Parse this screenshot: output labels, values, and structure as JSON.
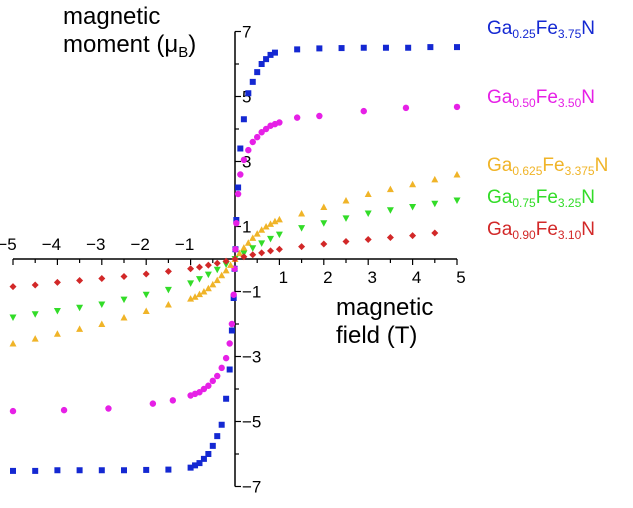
{
  "chart_data": {
    "type": "scatter",
    "ylabel": {
      "line1": "magnetic",
      "line2": "moment (",
      "symbol": "μ",
      "sub": "B",
      "close": ")"
    },
    "xlabel": {
      "line1": "magnetic",
      "line2": "field (T)"
    },
    "xlim": [
      -5,
      5
    ],
    "ylim": [
      -7,
      7
    ],
    "x_ticks": [
      "−5",
      "−4",
      "−3",
      "−2",
      "−1",
      "1",
      "2",
      "3",
      "4",
      "5"
    ],
    "y_ticks": [
      "7",
      "5",
      "3",
      "1",
      "−1",
      "−3",
      "−5",
      "−7"
    ],
    "grid": false,
    "legend_placement": "right",
    "series": [
      {
        "name": {
          "a": "Ga",
          "a_sub": "0.25",
          "b": "Fe",
          "b_sub": "3.75",
          "c": "N"
        },
        "color": "#1428d2",
        "marker": "square",
        "x": [
          -5,
          -4.5,
          -4,
          -3.5,
          -3,
          -2.5,
          -2,
          -1.5,
          -1,
          -0.9,
          -0.8,
          -0.7,
          -0.6,
          -0.5,
          -0.4,
          -0.3,
          -0.2,
          -0.12,
          -0.07,
          -0.03,
          -0.01,
          0.01,
          0.03,
          0.07,
          0.12,
          0.2,
          0.3,
          0.4,
          0.5,
          0.6,
          0.7,
          0.8,
          0.9,
          1.4,
          1.9,
          2.4,
          2.9,
          3.4,
          3.9,
          4.4,
          5
        ],
        "y": [
          -6.52,
          -6.52,
          -6.5,
          -6.5,
          -6.5,
          -6.5,
          -6.49,
          -6.48,
          -6.42,
          -6.35,
          -6.28,
          -6.15,
          -6.0,
          -5.75,
          -5.45,
          -5.1,
          -4.3,
          -3.4,
          -2.2,
          -1.2,
          -0.3,
          0.3,
          1.2,
          2.2,
          3.4,
          4.3,
          5.1,
          5.45,
          5.75,
          6.0,
          6.15,
          6.28,
          6.35,
          6.45,
          6.48,
          6.49,
          6.5,
          6.5,
          6.5,
          6.52,
          6.52
        ]
      },
      {
        "name": {
          "a": "Ga",
          "a_sub": "0.50",
          "b": "Fe",
          "b_sub": "3.50",
          "c": "N"
        },
        "color": "#e620e6",
        "marker": "circle",
        "x": [
          -5,
          -3.85,
          -2.85,
          -1.85,
          -1.4,
          -1,
          -0.9,
          -0.8,
          -0.7,
          -0.6,
          -0.5,
          -0.4,
          -0.3,
          -0.2,
          -0.12,
          -0.07,
          -0.03,
          -0.01,
          0.01,
          0.03,
          0.07,
          0.12,
          0.2,
          0.3,
          0.4,
          0.5,
          0.6,
          0.7,
          0.8,
          0.9,
          1,
          1.4,
          1.9,
          2.9,
          3.85,
          5
        ],
        "y": [
          -4.68,
          -4.65,
          -4.6,
          -4.45,
          -4.35,
          -4.2,
          -4.15,
          -4.1,
          -4.0,
          -3.9,
          -3.75,
          -3.6,
          -3.35,
          -3.05,
          -2.6,
          -2.0,
          -1.1,
          -0.3,
          0.3,
          1.1,
          2.0,
          2.6,
          3.05,
          3.35,
          3.6,
          3.75,
          3.9,
          4.0,
          4.1,
          4.15,
          4.2,
          4.35,
          4.4,
          4.55,
          4.65,
          4.68
        ]
      },
      {
        "name": {
          "a": "Ga",
          "a_sub": "0.625",
          "b": "Fe",
          "b_sub": "3.375",
          "c": "N"
        },
        "color": "#f0b428",
        "marker": "triangle-up",
        "x": [
          -5,
          -4.5,
          -4,
          -3.5,
          -3,
          -2.5,
          -2,
          -1.5,
          -1,
          -0.9,
          -0.8,
          -0.7,
          -0.6,
          -0.5,
          -0.4,
          -0.3,
          -0.2,
          -0.1,
          0,
          0.1,
          0.2,
          0.3,
          0.4,
          0.5,
          0.6,
          0.7,
          0.8,
          0.9,
          1,
          1.5,
          2,
          2.5,
          3,
          3.5,
          4,
          4.5,
          5
        ],
        "y": [
          -2.6,
          -2.45,
          -2.3,
          -2.15,
          -2.0,
          -1.8,
          -1.6,
          -1.4,
          -1.22,
          -1.16,
          -1.08,
          -1.0,
          -0.9,
          -0.78,
          -0.65,
          -0.5,
          -0.35,
          -0.18,
          0,
          0.18,
          0.35,
          0.5,
          0.65,
          0.78,
          0.9,
          1.0,
          1.08,
          1.16,
          1.22,
          1.4,
          1.6,
          1.8,
          2.0,
          2.15,
          2.3,
          2.45,
          2.6
        ]
      },
      {
        "name": {
          "a": "Ga",
          "a_sub": "0.75",
          "b": "Fe",
          "b_sub": "3.25",
          "c": "N"
        },
        "color": "#32dc28",
        "marker": "triangle-down",
        "x": [
          -5,
          -4.5,
          -4,
          -3.5,
          -3,
          -2.5,
          -2,
          -1.5,
          -1,
          -0.8,
          -0.6,
          -0.4,
          -0.2,
          0,
          0.2,
          0.4,
          0.6,
          0.8,
          1,
          1.5,
          2,
          2.5,
          3,
          3.5,
          4,
          4.5,
          5
        ],
        "y": [
          -1.8,
          -1.7,
          -1.6,
          -1.5,
          -1.4,
          -1.25,
          -1.1,
          -0.95,
          -0.75,
          -0.62,
          -0.48,
          -0.33,
          -0.17,
          0,
          0.17,
          0.33,
          0.48,
          0.62,
          0.75,
          0.95,
          1.1,
          1.25,
          1.4,
          1.5,
          1.6,
          1.7,
          1.8
        ]
      },
      {
        "name": {
          "a": "Ga",
          "a_sub": "0.90",
          "b": "Fe",
          "b_sub": "3.10",
          "c": "N"
        },
        "color": "#d22828",
        "marker": "diamond",
        "x": [
          -5,
          -4.5,
          -4,
          -3.5,
          -3,
          -2.5,
          -2,
          -1.5,
          -1,
          -0.8,
          -0.6,
          -0.4,
          -0.2,
          0,
          0.2,
          0.4,
          0.6,
          0.8,
          1,
          1.5,
          2,
          2.5,
          3,
          3.5,
          4,
          4.5
        ],
        "y": [
          -0.85,
          -0.8,
          -0.72,
          -0.66,
          -0.6,
          -0.54,
          -0.46,
          -0.38,
          -0.3,
          -0.25,
          -0.19,
          -0.13,
          -0.07,
          0,
          0.07,
          0.13,
          0.19,
          0.25,
          0.3,
          0.38,
          0.46,
          0.54,
          0.6,
          0.66,
          0.72,
          0.8
        ]
      }
    ]
  }
}
